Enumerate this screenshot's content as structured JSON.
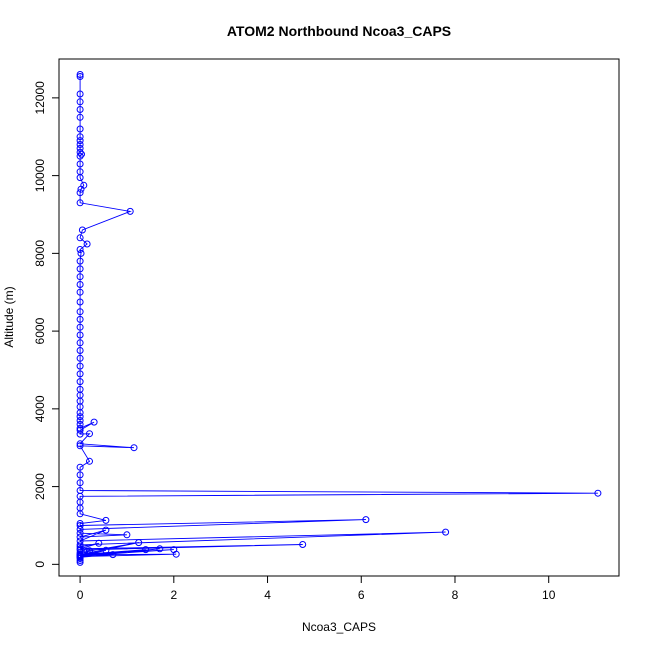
{
  "chart_data": {
    "type": "line",
    "title": "ATOM2 Northbound Ncoa3_CAPS",
    "xlabel": "Ncoa3_CAPS",
    "ylabel": "Altitude (m)",
    "xlim": [
      -0.45,
      11.5
    ],
    "ylim": [
      -300,
      13000
    ],
    "x_ticks": [
      0,
      2,
      4,
      6,
      8,
      10
    ],
    "y_ticks": [
      0,
      2000,
      4000,
      6000,
      8000,
      10000,
      12000
    ],
    "grid": false,
    "legend": "none",
    "marker": "open-circle",
    "color": "#0000ff",
    "series": [
      {
        "x": [
          0,
          0,
          0,
          0,
          0,
          0,
          0,
          0,
          0,
          0,
          0,
          0,
          0.03,
          0,
          0,
          0,
          0,
          0.08,
          0.02,
          0,
          0,
          1.07,
          0.05,
          0,
          0.15,
          0,
          0.02,
          0,
          0,
          0,
          0,
          0,
          0,
          0,
          0,
          0,
          0,
          0,
          0,
          0,
          0,
          0,
          0,
          0,
          0,
          0,
          0,
          0,
          0,
          0,
          0,
          0,
          0.3,
          0,
          0,
          0.2,
          0,
          1.15,
          0,
          0.2,
          0,
          0,
          0,
          0,
          11.05,
          0,
          0,
          0,
          0,
          0.55,
          0,
          0,
          6.1,
          0,
          0,
          1.0,
          0,
          0.55,
          0,
          7.8,
          0,
          0,
          0.4,
          0,
          4.75,
          0,
          0,
          1.25,
          0,
          2.0,
          0,
          1.7,
          0,
          1.4,
          0,
          2.05,
          0,
          0.55,
          0,
          0.7,
          0,
          0.2,
          0.15,
          0,
          0,
          0
        ],
        "y": [
          12600,
          12550,
          12100,
          11900,
          11700,
          11500,
          11200,
          11000,
          10900,
          10800,
          10700,
          10600,
          10550,
          10500,
          10300,
          10100,
          9950,
          9750,
          9650,
          9560,
          9300,
          9080,
          8600,
          8400,
          8240,
          8100,
          8000,
          7800,
          7600,
          7400,
          7200,
          7000,
          6750,
          6500,
          6300,
          6100,
          5900,
          5700,
          5500,
          5300,
          5100,
          4900,
          4700,
          4500,
          4350,
          4200,
          4050,
          3900,
          3800,
          3700,
          3600,
          3500,
          3660,
          3450,
          3350,
          3360,
          3100,
          3000,
          3050,
          2650,
          2500,
          2300,
          2100,
          1900,
          1830,
          1750,
          1600,
          1450,
          1300,
          1130,
          1050,
          1000,
          1150,
          900,
          800,
          760,
          700,
          880,
          600,
          830,
          500,
          450,
          540,
          400,
          510,
          370,
          300,
          560,
          250,
          380,
          220,
          400,
          200,
          380,
          250,
          260,
          200,
          360,
          230,
          250,
          180,
          350,
          340,
          150,
          100,
          50
        ]
      }
    ]
  }
}
